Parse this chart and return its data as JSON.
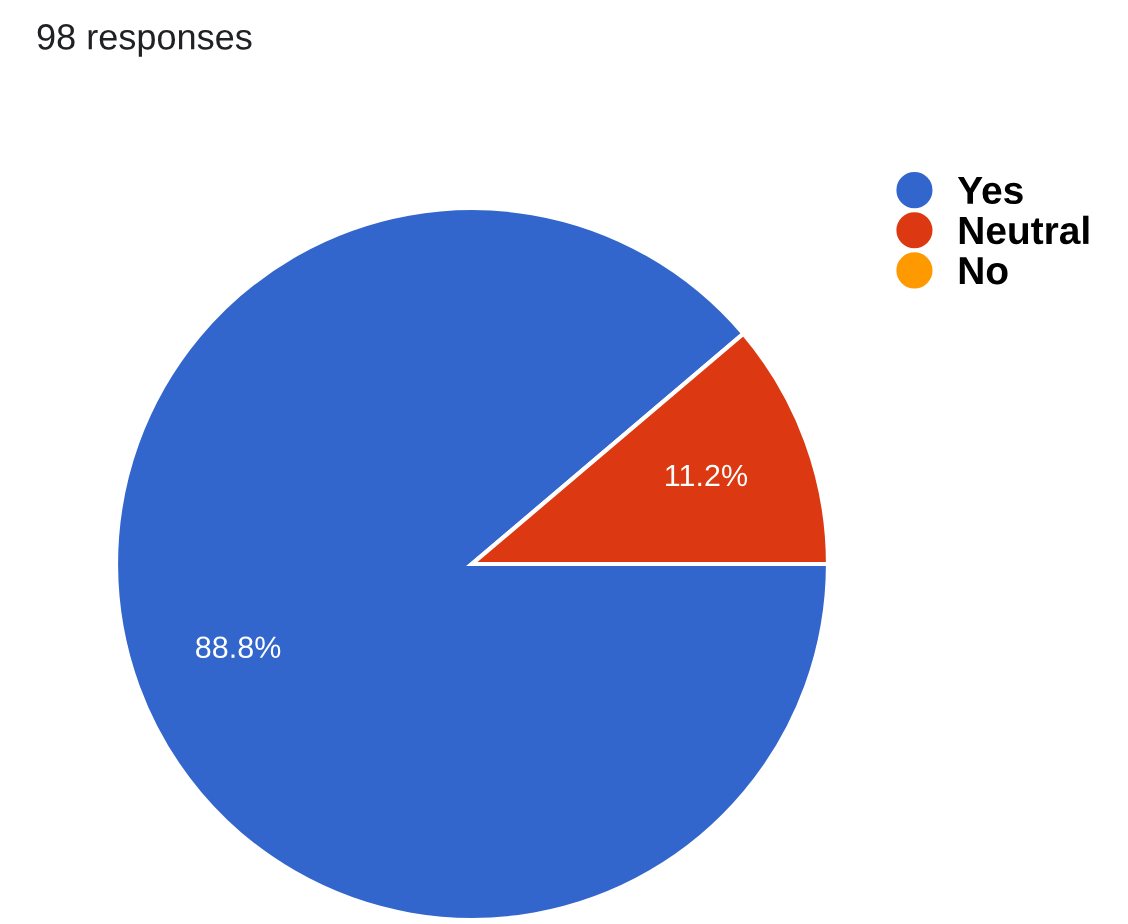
{
  "chart_data": {
    "type": "pie",
    "title": "98 responses",
    "categories": [
      "Yes",
      "Neutral",
      "No"
    ],
    "values": [
      88.8,
      11.2,
      0
    ],
    "colors": [
      "#3366cc",
      "#dc3912",
      "#ff9900"
    ],
    "value_labels": [
      "88.8%",
      "11.2%",
      null
    ],
    "legend": "top right"
  }
}
